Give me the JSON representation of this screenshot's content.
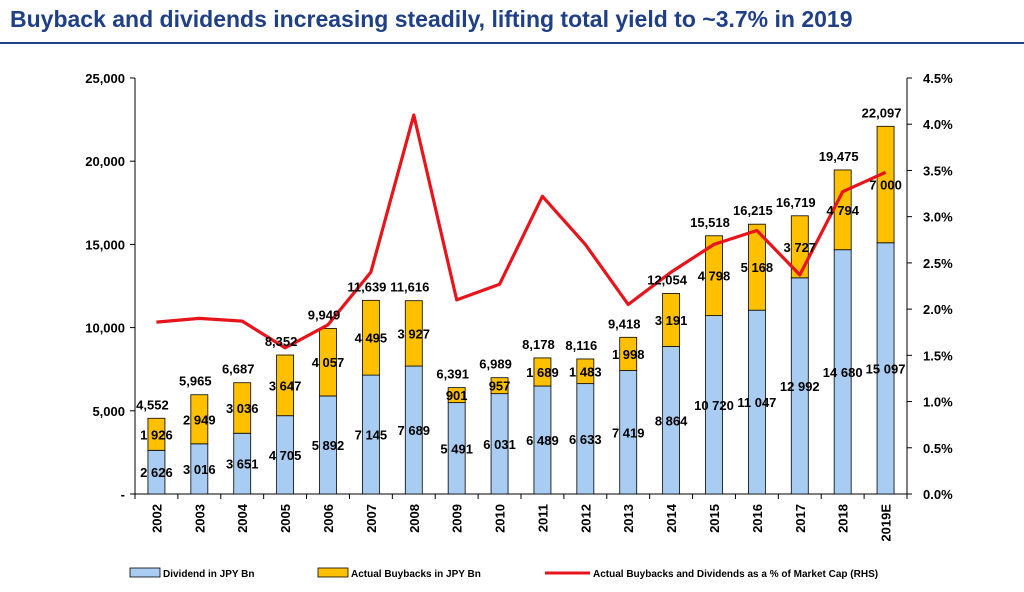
{
  "page": {
    "title": "Buyback and dividends increasing steadily, lifting total yield to ~3.7% in 2019"
  },
  "colors": {
    "title": "#1f3f86",
    "dividend": "#a9cdf2",
    "buyback": "#ffc000",
    "line": "#e8141b",
    "axis": "#000000"
  },
  "chart_data": {
    "type": "bar",
    "stacked": true,
    "categories": [
      "2002",
      "2003",
      "2004",
      "2005",
      "2006",
      "2007",
      "2008",
      "2009",
      "2010",
      "2011",
      "2012",
      "2013",
      "2014",
      "2015",
      "2016",
      "2017",
      "2018",
      "2019E"
    ],
    "series": [
      {
        "name": "Dividend in JPY Bn",
        "color": "#a9cdf2",
        "values": [
          2626,
          3016,
          3651,
          4705,
          5892,
          7145,
          7689,
          5491,
          6031,
          6489,
          6633,
          7419,
          8864,
          10720,
          11047,
          12992,
          14680,
          15097
        ],
        "labels": [
          "2 626",
          "3 016",
          "3 651",
          "4 705",
          "5 892",
          "7 145",
          "7 689",
          "5 491",
          "6 031",
          "6 489",
          "6 633",
          "7 419",
          "8 864",
          "10 720",
          "11 047",
          "12 992",
          "14 680",
          "15 097"
        ]
      },
      {
        "name": "Actual Buybacks in JPY Bn",
        "color": "#ffc000",
        "values": [
          1926,
          2949,
          3036,
          3647,
          4057,
          4495,
          3927,
          901,
          957,
          1689,
          1483,
          1998,
          3191,
          4798,
          5168,
          3727,
          4794,
          7000
        ],
        "labels": [
          "1 926",
          "2 949",
          "3 036",
          "3 647",
          "4 057",
          "4 495",
          "3 927",
          "901",
          "957",
          "1 689",
          "1 483",
          "1 998",
          "3 191",
          "4 798",
          "5 168",
          "3 727",
          "4 794",
          "7 000"
        ]
      }
    ],
    "totals": [
      "4,552",
      "5,965",
      "6,687",
      "8,352",
      "9,949",
      "11,639",
      "11,616",
      "6,391",
      "6,989",
      "8,178",
      "8,116",
      "9,418",
      "12,054",
      "15,518",
      "16,215",
      "16,719",
      "19,475",
      "22,097"
    ],
    "line_series": {
      "name": "Actual Buybacks and Dividends as a % of Market Cap (RHS)",
      "color": "#e8141b",
      "axis": "right",
      "values": [
        1.86,
        1.9,
        1.87,
        1.58,
        1.83,
        2.4,
        4.1,
        2.1,
        2.27,
        3.22,
        2.7,
        2.05,
        2.4,
        2.7,
        2.85,
        2.37,
        3.27,
        3.48
      ]
    },
    "y_left": {
      "min": 0,
      "max": 25000,
      "ticks": [
        0,
        5000,
        10000,
        15000,
        20000,
        25000
      ],
      "tick_labels": [
        "-",
        "5,000",
        "10,000",
        "15,000",
        "20,000",
        "25,000"
      ]
    },
    "y_right": {
      "min": 0,
      "max": 4.5,
      "ticks": [
        0,
        0.5,
        1.0,
        1.5,
        2.0,
        2.5,
        3.0,
        3.5,
        4.0,
        4.5
      ],
      "tick_labels": [
        "0.0%",
        "0.5%",
        "1.0%",
        "1.5%",
        "2.0%",
        "2.5%",
        "3.0%",
        "3.5%",
        "4.0%",
        "4.5%"
      ]
    },
    "grid": false,
    "legend_position": "bottom"
  }
}
